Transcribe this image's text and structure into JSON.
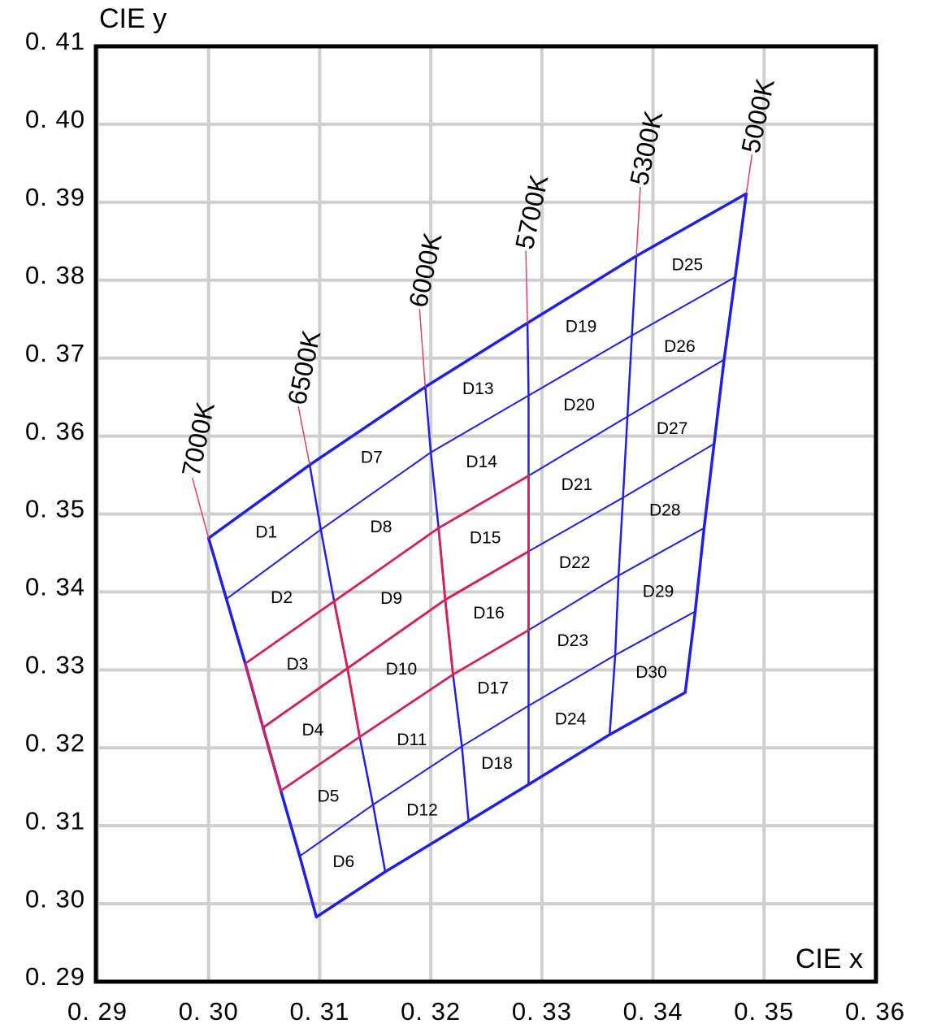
{
  "chart_data": {
    "type": "bin-map",
    "x_label": "CIE x",
    "y_label": "CIE y",
    "xlim": [
      0.29,
      0.36
    ],
    "ylim": [
      0.29,
      0.41
    ],
    "xticks": [
      {
        "value": 0.29,
        "label": "0. 29"
      },
      {
        "value": 0.3,
        "label": "0. 30"
      },
      {
        "value": 0.31,
        "label": "0. 31"
      },
      {
        "value": 0.32,
        "label": "0. 32"
      },
      {
        "value": 0.33,
        "label": "0. 33"
      },
      {
        "value": 0.34,
        "label": "0. 34"
      },
      {
        "value": 0.35,
        "label": "0. 35"
      },
      {
        "value": 0.36,
        "label": "0. 36"
      }
    ],
    "yticks": [
      {
        "value": 0.29,
        "label": "0. 29"
      },
      {
        "value": 0.3,
        "label": "0. 30"
      },
      {
        "value": 0.31,
        "label": "0. 31"
      },
      {
        "value": 0.32,
        "label": "0. 32"
      },
      {
        "value": 0.33,
        "label": "0. 33"
      },
      {
        "value": 0.34,
        "label": "0. 34"
      },
      {
        "value": 0.35,
        "label": "0. 35"
      },
      {
        "value": 0.36,
        "label": "0. 36"
      },
      {
        "value": 0.37,
        "label": "0. 37"
      },
      {
        "value": 0.38,
        "label": "0. 38"
      },
      {
        "value": 0.39,
        "label": "0. 39"
      },
      {
        "value": 0.4,
        "label": "0. 40"
      },
      {
        "value": 0.41,
        "label": "0. 41"
      }
    ],
    "grid": true,
    "line_color": "#1f1fe6",
    "leader_color": "#e0406a",
    "cct_lines": [
      {
        "name": "7000K",
        "x": [
          0.3,
          0.3016,
          0.3033,
          0.3049,
          0.3065,
          0.3082,
          0.3097
        ],
        "y": [
          0.3469,
          0.3391,
          0.3308,
          0.3226,
          0.3145,
          0.3061,
          0.2983
        ]
      },
      {
        "name": "6500K",
        "x": [
          0.3091,
          0.3101,
          0.3113,
          0.3125,
          0.3136,
          0.3148,
          0.3159
        ],
        "y": [
          0.3563,
          0.348,
          0.3388,
          0.3302,
          0.3214,
          0.3127,
          0.3041
        ]
      },
      {
        "name": "6000K",
        "x": [
          0.3195,
          0.32,
          0.3207,
          0.3213,
          0.322,
          0.3228,
          0.3234
        ],
        "y": [
          0.3663,
          0.3579,
          0.3482,
          0.339,
          0.3294,
          0.3202,
          0.3106
        ]
      },
      {
        "name": "5700K",
        "x": [
          0.3287,
          0.3288,
          0.3288,
          0.3288,
          0.3288,
          0.3288,
          0.3288
        ],
        "y": [
          0.3745,
          0.3652,
          0.3549,
          0.3452,
          0.3351,
          0.3254,
          0.3153
        ]
      },
      {
        "name": "5300K",
        "x": [
          0.3385,
          0.3381,
          0.3377,
          0.3373,
          0.3369,
          0.3366,
          0.3361
        ],
        "y": [
          0.3831,
          0.3729,
          0.3625,
          0.3521,
          0.3421,
          0.3319,
          0.3217
        ]
      },
      {
        "name": "5000K",
        "x": [
          0.3484,
          0.3474,
          0.3464,
          0.3455,
          0.3446,
          0.3438,
          0.3429
        ],
        "y": [
          0.3911,
          0.3804,
          0.3698,
          0.359,
          0.3482,
          0.3375,
          0.3271
        ]
      }
    ],
    "bins": [
      [
        "D1",
        "D2",
        "D3",
        "D4",
        "D5",
        "D6"
      ],
      [
        "D7",
        "D8",
        "D9",
        "D10",
        "D11",
        "D12"
      ],
      [
        "D13",
        "D14",
        "D15",
        "D16",
        "D17",
        "D18"
      ],
      [
        "D19",
        "D20",
        "D21",
        "D22",
        "D23",
        "D24"
      ],
      [
        "D25",
        "D26",
        "D27",
        "D28",
        "D29",
        "D30"
      ]
    ],
    "highlight": {
      "bins": [
        "D3",
        "D4",
        "D9",
        "D10",
        "D15",
        "D16"
      ],
      "color": "#d3205e"
    }
  }
}
